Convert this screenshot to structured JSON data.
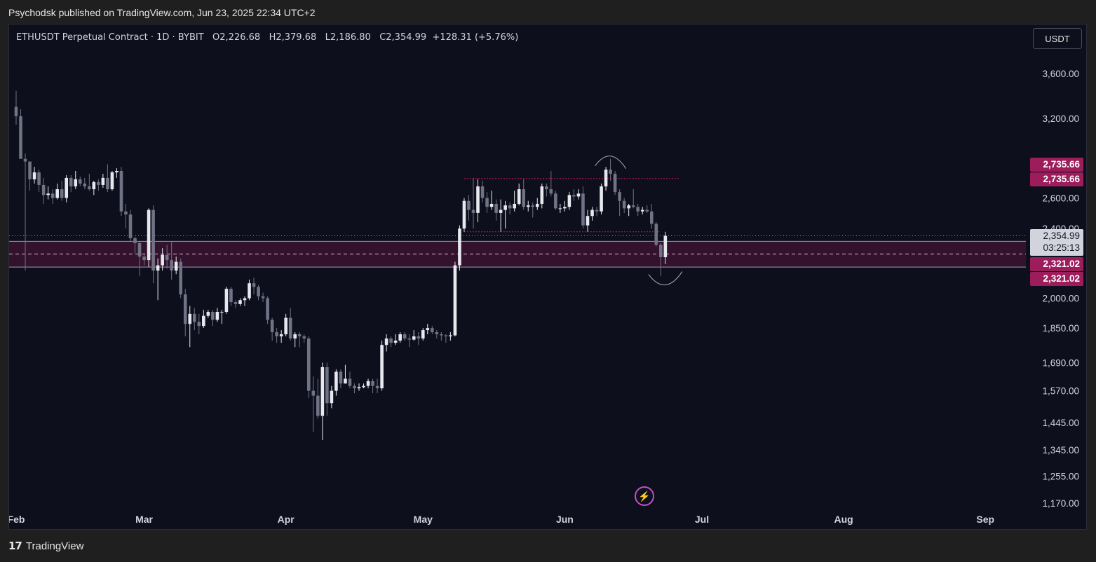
{
  "header": {
    "published": "Psychodsk published on TradingView.com, Jun 23, 2025 22:34 UTC+2"
  },
  "legend": {
    "symbol": "ETHUSDT Perpetual Contract · 1D · BYBIT",
    "open": "O2,226.68",
    "high": "H2,379.68",
    "low": "L2,186.80",
    "close": "C2,354.99",
    "change": "+128.31 (+5.76%)"
  },
  "currency_button": "USDT",
  "footer": {
    "brand": "TradingView",
    "logo": "tradingview-logo-icon"
  },
  "colors": {
    "background": "#0d0f1c",
    "candle": "#d1d4dc",
    "zone": "#8b1a57",
    "resistance": "#c2185b"
  },
  "chart_data": {
    "type": "candlestick",
    "symbol": "ETHUSDT",
    "timeframe": "1D",
    "exchange": "BYBIT",
    "price_scale": "log",
    "y_ticks": [
      3600,
      3200,
      2600,
      2400,
      2000,
      1850,
      1690,
      1570,
      1445,
      1345,
      1255,
      1170
    ],
    "y_tick_labels": [
      "3,600.00",
      "3,200.00",
      "2,600.00",
      "2,400.00",
      "2,000.00",
      "1,850.00",
      "1,690.00",
      "1,570.00",
      "1,445.00",
      "1,345.00",
      "1,255.00",
      "1,170.00"
    ],
    "x_ticks": [
      {
        "label": "Feb",
        "date": "2025-02-01"
      },
      {
        "label": "Mar",
        "date": "2025-03-01"
      },
      {
        "label": "Apr",
        "date": "2025-04-01"
      },
      {
        "label": "May",
        "date": "2025-05-01"
      },
      {
        "label": "Jun",
        "date": "2025-06-01"
      },
      {
        "label": "Jul",
        "date": "2025-07-01"
      },
      {
        "label": "Aug",
        "date": "2025-08-01"
      },
      {
        "label": "Sep",
        "date": "2025-09-01"
      }
    ],
    "last_price": {
      "value": 2354.99,
      "label": "2,354.99",
      "countdown": "03:25:13"
    },
    "resistance": {
      "value": 2735.66,
      "labels": [
        "2,735.66",
        "2,735.66"
      ],
      "from": "2025-05-10",
      "to": "2025-06-26"
    },
    "range_low": {
      "value": 2380,
      "from": "2025-05-10",
      "to": "2025-06-22"
    },
    "support_zone": {
      "top": 2321.02,
      "bottom": 2170,
      "mid": 2245,
      "labels": [
        "2,321.02",
        "2,321.02"
      ]
    },
    "annotations": [
      {
        "type": "arc-top",
        "date": "2025-06-11",
        "price": 2880
      },
      {
        "type": "arc-bottom",
        "date": "2025-06-23",
        "price": 2090
      }
    ],
    "candles": [
      {
        "d": "2025-02-01",
        "o": 3300,
        "h": 3440,
        "l": 3150,
        "c": 3220
      },
      {
        "d": "2025-02-02",
        "o": 3220,
        "h": 3280,
        "l": 2900,
        "c": 2880
      },
      {
        "d": "2025-02-03",
        "o": 2880,
        "h": 2920,
        "l": 2150,
        "c": 2860
      },
      {
        "d": "2025-02-04",
        "o": 2860,
        "h": 2850,
        "l": 2650,
        "c": 2730
      },
      {
        "d": "2025-02-05",
        "o": 2730,
        "h": 2820,
        "l": 2700,
        "c": 2780
      },
      {
        "d": "2025-02-06",
        "o": 2780,
        "h": 2800,
        "l": 2640,
        "c": 2690
      },
      {
        "d": "2025-02-07",
        "o": 2690,
        "h": 2740,
        "l": 2560,
        "c": 2620
      },
      {
        "d": "2025-02-08",
        "o": 2620,
        "h": 2680,
        "l": 2590,
        "c": 2630
      },
      {
        "d": "2025-02-09",
        "o": 2630,
        "h": 2660,
        "l": 2560,
        "c": 2600
      },
      {
        "d": "2025-02-10",
        "o": 2600,
        "h": 2700,
        "l": 2590,
        "c": 2660
      },
      {
        "d": "2025-02-11",
        "o": 2660,
        "h": 2720,
        "l": 2580,
        "c": 2600
      },
      {
        "d": "2025-02-12",
        "o": 2600,
        "h": 2760,
        "l": 2570,
        "c": 2740
      },
      {
        "d": "2025-02-13",
        "o": 2740,
        "h": 2760,
        "l": 2640,
        "c": 2680
      },
      {
        "d": "2025-02-14",
        "o": 2680,
        "h": 2790,
        "l": 2660,
        "c": 2730
      },
      {
        "d": "2025-02-15",
        "o": 2730,
        "h": 2750,
        "l": 2680,
        "c": 2700
      },
      {
        "d": "2025-02-16",
        "o": 2700,
        "h": 2740,
        "l": 2660,
        "c": 2680
      },
      {
        "d": "2025-02-17",
        "o": 2680,
        "h": 2770,
        "l": 2650,
        "c": 2660
      },
      {
        "d": "2025-02-18",
        "o": 2660,
        "h": 2720,
        "l": 2620,
        "c": 2710
      },
      {
        "d": "2025-02-19",
        "o": 2710,
        "h": 2730,
        "l": 2650,
        "c": 2690
      },
      {
        "d": "2025-02-20",
        "o": 2690,
        "h": 2770,
        "l": 2670,
        "c": 2740
      },
      {
        "d": "2025-02-21",
        "o": 2740,
        "h": 2840,
        "l": 2640,
        "c": 2660
      },
      {
        "d": "2025-02-22",
        "o": 2660,
        "h": 2790,
        "l": 2650,
        "c": 2780
      },
      {
        "d": "2025-02-23",
        "o": 2780,
        "h": 2810,
        "l": 2740,
        "c": 2790
      },
      {
        "d": "2025-02-24",
        "o": 2790,
        "h": 2820,
        "l": 2480,
        "c": 2510
      },
      {
        "d": "2025-02-25",
        "o": 2510,
        "h": 2560,
        "l": 2400,
        "c": 2490
      },
      {
        "d": "2025-02-26",
        "o": 2490,
        "h": 2520,
        "l": 2320,
        "c": 2340
      },
      {
        "d": "2025-02-27",
        "o": 2340,
        "h": 2350,
        "l": 2250,
        "c": 2310
      },
      {
        "d": "2025-02-28",
        "o": 2310,
        "h": 2320,
        "l": 2120,
        "c": 2230
      },
      {
        "d": "2025-03-01",
        "o": 2230,
        "h": 2250,
        "l": 2180,
        "c": 2210
      },
      {
        "d": "2025-03-02",
        "o": 2210,
        "h": 2530,
        "l": 2170,
        "c": 2520
      },
      {
        "d": "2025-03-03",
        "o": 2520,
        "h": 2550,
        "l": 2080,
        "c": 2150
      },
      {
        "d": "2025-03-04",
        "o": 2150,
        "h": 2220,
        "l": 1990,
        "c": 2180
      },
      {
        "d": "2025-03-05",
        "o": 2180,
        "h": 2280,
        "l": 2150,
        "c": 2240
      },
      {
        "d": "2025-03-06",
        "o": 2240,
        "h": 2300,
        "l": 2160,
        "c": 2210
      },
      {
        "d": "2025-03-07",
        "o": 2210,
        "h": 2320,
        "l": 2100,
        "c": 2150
      },
      {
        "d": "2025-03-08",
        "o": 2150,
        "h": 2230,
        "l": 2130,
        "c": 2200
      },
      {
        "d": "2025-03-09",
        "o": 2200,
        "h": 2220,
        "l": 2000,
        "c": 2020
      },
      {
        "d": "2025-03-10",
        "o": 2020,
        "h": 2050,
        "l": 1810,
        "c": 1870
      },
      {
        "d": "2025-03-11",
        "o": 1870,
        "h": 1960,
        "l": 1760,
        "c": 1920
      },
      {
        "d": "2025-03-12",
        "o": 1920,
        "h": 1950,
        "l": 1840,
        "c": 1880
      },
      {
        "d": "2025-03-13",
        "o": 1880,
        "h": 1920,
        "l": 1820,
        "c": 1860
      },
      {
        "d": "2025-03-14",
        "o": 1860,
        "h": 1940,
        "l": 1850,
        "c": 1910
      },
      {
        "d": "2025-03-15",
        "o": 1910,
        "h": 1940,
        "l": 1900,
        "c": 1930
      },
      {
        "d": "2025-03-16",
        "o": 1930,
        "h": 1940,
        "l": 1860,
        "c": 1890
      },
      {
        "d": "2025-03-17",
        "o": 1890,
        "h": 1950,
        "l": 1880,
        "c": 1930
      },
      {
        "d": "2025-03-18",
        "o": 1930,
        "h": 1940,
        "l": 1870,
        "c": 1930
      },
      {
        "d": "2025-03-19",
        "o": 1930,
        "h": 2060,
        "l": 1920,
        "c": 2050
      },
      {
        "d": "2025-03-20",
        "o": 2050,
        "h": 2060,
        "l": 1960,
        "c": 1980
      },
      {
        "d": "2025-03-21",
        "o": 1980,
        "h": 1990,
        "l": 1950,
        "c": 1970
      },
      {
        "d": "2025-03-22",
        "o": 1970,
        "h": 2000,
        "l": 1960,
        "c": 1990
      },
      {
        "d": "2025-03-23",
        "o": 1990,
        "h": 2010,
        "l": 1960,
        "c": 2000
      },
      {
        "d": "2025-03-24",
        "o": 2000,
        "h": 2100,
        "l": 1990,
        "c": 2080
      },
      {
        "d": "2025-03-25",
        "o": 2080,
        "h": 2110,
        "l": 2020,
        "c": 2060
      },
      {
        "d": "2025-03-26",
        "o": 2060,
        "h": 2070,
        "l": 1990,
        "c": 2010
      },
      {
        "d": "2025-03-27",
        "o": 2010,
        "h": 2030,
        "l": 1980,
        "c": 2000
      },
      {
        "d": "2025-03-28",
        "o": 2000,
        "h": 2010,
        "l": 1870,
        "c": 1890
      },
      {
        "d": "2025-03-29",
        "o": 1890,
        "h": 1900,
        "l": 1790,
        "c": 1830
      },
      {
        "d": "2025-03-30",
        "o": 1830,
        "h": 1850,
        "l": 1780,
        "c": 1810
      },
      {
        "d": "2025-03-31",
        "o": 1810,
        "h": 1840,
        "l": 1780,
        "c": 1820
      },
      {
        "d": "2025-04-01",
        "o": 1820,
        "h": 1920,
        "l": 1810,
        "c": 1900
      },
      {
        "d": "2025-04-02",
        "o": 1900,
        "h": 1950,
        "l": 1790,
        "c": 1800
      },
      {
        "d": "2025-04-03",
        "o": 1800,
        "h": 1830,
        "l": 1760,
        "c": 1820
      },
      {
        "d": "2025-04-04",
        "o": 1820,
        "h": 1830,
        "l": 1760,
        "c": 1810
      },
      {
        "d": "2025-04-05",
        "o": 1810,
        "h": 1820,
        "l": 1780,
        "c": 1800
      },
      {
        "d": "2025-04-06",
        "o": 1800,
        "h": 1810,
        "l": 1540,
        "c": 1570
      },
      {
        "d": "2025-04-07",
        "o": 1570,
        "h": 1630,
        "l": 1410,
        "c": 1550
      },
      {
        "d": "2025-04-08",
        "o": 1550,
        "h": 1620,
        "l": 1460,
        "c": 1470
      },
      {
        "d": "2025-04-09",
        "o": 1470,
        "h": 1690,
        "l": 1380,
        "c": 1670
      },
      {
        "d": "2025-04-10",
        "o": 1670,
        "h": 1690,
        "l": 1470,
        "c": 1520
      },
      {
        "d": "2025-04-11",
        "o": 1520,
        "h": 1590,
        "l": 1500,
        "c": 1570
      },
      {
        "d": "2025-04-12",
        "o": 1570,
        "h": 1660,
        "l": 1550,
        "c": 1650
      },
      {
        "d": "2025-04-13",
        "o": 1650,
        "h": 1660,
        "l": 1580,
        "c": 1600
      },
      {
        "d": "2025-04-14",
        "o": 1600,
        "h": 1680,
        "l": 1600,
        "c": 1620
      },
      {
        "d": "2025-04-15",
        "o": 1620,
        "h": 1650,
        "l": 1580,
        "c": 1590
      },
      {
        "d": "2025-04-16",
        "o": 1590,
        "h": 1600,
        "l": 1560,
        "c": 1580
      },
      {
        "d": "2025-04-17",
        "o": 1580,
        "h": 1600,
        "l": 1570,
        "c": 1585
      },
      {
        "d": "2025-04-18",
        "o": 1585,
        "h": 1600,
        "l": 1580,
        "c": 1590
      },
      {
        "d": "2025-04-19",
        "o": 1590,
        "h": 1620,
        "l": 1580,
        "c": 1610
      },
      {
        "d": "2025-04-20",
        "o": 1610,
        "h": 1620,
        "l": 1560,
        "c": 1590
      },
      {
        "d": "2025-04-21",
        "o": 1590,
        "h": 1620,
        "l": 1560,
        "c": 1580
      },
      {
        "d": "2025-04-22",
        "o": 1580,
        "h": 1790,
        "l": 1570,
        "c": 1770
      },
      {
        "d": "2025-04-23",
        "o": 1770,
        "h": 1820,
        "l": 1740,
        "c": 1800
      },
      {
        "d": "2025-04-24",
        "o": 1800,
        "h": 1810,
        "l": 1760,
        "c": 1780
      },
      {
        "d": "2025-04-25",
        "o": 1780,
        "h": 1820,
        "l": 1770,
        "c": 1790
      },
      {
        "d": "2025-04-26",
        "o": 1790,
        "h": 1830,
        "l": 1780,
        "c": 1820
      },
      {
        "d": "2025-04-27",
        "o": 1820,
        "h": 1830,
        "l": 1790,
        "c": 1800
      },
      {
        "d": "2025-04-28",
        "o": 1800,
        "h": 1820,
        "l": 1760,
        "c": 1795
      },
      {
        "d": "2025-04-29",
        "o": 1795,
        "h": 1840,
        "l": 1790,
        "c": 1810
      },
      {
        "d": "2025-04-30",
        "o": 1810,
        "h": 1830,
        "l": 1770,
        "c": 1800
      },
      {
        "d": "2025-05-01",
        "o": 1800,
        "h": 1850,
        "l": 1790,
        "c": 1840
      },
      {
        "d": "2025-05-02",
        "o": 1840,
        "h": 1870,
        "l": 1820,
        "c": 1850
      },
      {
        "d": "2025-05-03",
        "o": 1850,
        "h": 1860,
        "l": 1820,
        "c": 1830
      },
      {
        "d": "2025-05-04",
        "o": 1830,
        "h": 1840,
        "l": 1800,
        "c": 1820
      },
      {
        "d": "2025-05-05",
        "o": 1820,
        "h": 1830,
        "l": 1790,
        "c": 1815
      },
      {
        "d": "2025-05-06",
        "o": 1815,
        "h": 1820,
        "l": 1780,
        "c": 1810
      },
      {
        "d": "2025-05-07",
        "o": 1810,
        "h": 1830,
        "l": 1790,
        "c": 1815
      },
      {
        "d": "2025-05-08",
        "o": 1815,
        "h": 2200,
        "l": 1810,
        "c": 2180
      },
      {
        "d": "2025-05-09",
        "o": 2180,
        "h": 2420,
        "l": 2150,
        "c": 2400
      },
      {
        "d": "2025-05-10",
        "o": 2400,
        "h": 2600,
        "l": 2380,
        "c": 2580
      },
      {
        "d": "2025-05-11",
        "o": 2580,
        "h": 2620,
        "l": 2450,
        "c": 2520
      },
      {
        "d": "2025-05-12",
        "o": 2520,
        "h": 2740,
        "l": 2400,
        "c": 2500
      },
      {
        "d": "2025-05-13",
        "o": 2500,
        "h": 2730,
        "l": 2440,
        "c": 2680
      },
      {
        "d": "2025-05-14",
        "o": 2680,
        "h": 2720,
        "l": 2570,
        "c": 2600
      },
      {
        "d": "2025-05-15",
        "o": 2600,
        "h": 2640,
        "l": 2500,
        "c": 2540
      },
      {
        "d": "2025-05-16",
        "o": 2540,
        "h": 2650,
        "l": 2520,
        "c": 2560
      },
      {
        "d": "2025-05-17",
        "o": 2560,
        "h": 2590,
        "l": 2450,
        "c": 2500
      },
      {
        "d": "2025-05-18",
        "o": 2500,
        "h": 2590,
        "l": 2380,
        "c": 2520
      },
      {
        "d": "2025-05-19",
        "o": 2520,
        "h": 2580,
        "l": 2400,
        "c": 2550
      },
      {
        "d": "2025-05-20",
        "o": 2550,
        "h": 2570,
        "l": 2490,
        "c": 2530
      },
      {
        "d": "2025-05-21",
        "o": 2530,
        "h": 2650,
        "l": 2510,
        "c": 2560
      },
      {
        "d": "2025-05-22",
        "o": 2560,
        "h": 2700,
        "l": 2550,
        "c": 2660
      },
      {
        "d": "2025-05-23",
        "o": 2660,
        "h": 2730,
        "l": 2520,
        "c": 2540
      },
      {
        "d": "2025-05-24",
        "o": 2540,
        "h": 2580,
        "l": 2510,
        "c": 2550
      },
      {
        "d": "2025-05-25",
        "o": 2550,
        "h": 2570,
        "l": 2470,
        "c": 2540
      },
      {
        "d": "2025-05-26",
        "o": 2540,
        "h": 2600,
        "l": 2520,
        "c": 2560
      },
      {
        "d": "2025-05-27",
        "o": 2560,
        "h": 2700,
        "l": 2530,
        "c": 2680
      },
      {
        "d": "2025-05-28",
        "o": 2680,
        "h": 2700,
        "l": 2610,
        "c": 2660
      },
      {
        "d": "2025-05-29",
        "o": 2660,
        "h": 2790,
        "l": 2610,
        "c": 2630
      },
      {
        "d": "2025-05-30",
        "o": 2630,
        "h": 2650,
        "l": 2520,
        "c": 2530
      },
      {
        "d": "2025-05-31",
        "o": 2530,
        "h": 2560,
        "l": 2500,
        "c": 2530
      },
      {
        "d": "2025-06-01",
        "o": 2530,
        "h": 2580,
        "l": 2510,
        "c": 2540
      },
      {
        "d": "2025-06-02",
        "o": 2540,
        "h": 2640,
        "l": 2520,
        "c": 2620
      },
      {
        "d": "2025-06-03",
        "o": 2620,
        "h": 2660,
        "l": 2580,
        "c": 2610
      },
      {
        "d": "2025-06-04",
        "o": 2610,
        "h": 2660,
        "l": 2590,
        "c": 2630
      },
      {
        "d": "2025-06-05",
        "o": 2630,
        "h": 2680,
        "l": 2400,
        "c": 2420
      },
      {
        "d": "2025-06-06",
        "o": 2420,
        "h": 2520,
        "l": 2380,
        "c": 2480
      },
      {
        "d": "2025-06-07",
        "o": 2480,
        "h": 2540,
        "l": 2450,
        "c": 2520
      },
      {
        "d": "2025-06-08",
        "o": 2520,
        "h": 2540,
        "l": 2480,
        "c": 2510
      },
      {
        "d": "2025-06-09",
        "o": 2510,
        "h": 2700,
        "l": 2490,
        "c": 2680
      },
      {
        "d": "2025-06-10",
        "o": 2680,
        "h": 2820,
        "l": 2650,
        "c": 2800
      },
      {
        "d": "2025-06-11",
        "o": 2800,
        "h": 2880,
        "l": 2720,
        "c": 2770
      },
      {
        "d": "2025-06-12",
        "o": 2770,
        "h": 2790,
        "l": 2620,
        "c": 2640
      },
      {
        "d": "2025-06-13",
        "o": 2640,
        "h": 2660,
        "l": 2480,
        "c": 2580
      },
      {
        "d": "2025-06-14",
        "o": 2580,
        "h": 2600,
        "l": 2500,
        "c": 2530
      },
      {
        "d": "2025-06-15",
        "o": 2530,
        "h": 2560,
        "l": 2480,
        "c": 2550
      },
      {
        "d": "2025-06-16",
        "o": 2550,
        "h": 2660,
        "l": 2530,
        "c": 2540
      },
      {
        "d": "2025-06-17",
        "o": 2540,
        "h": 2560,
        "l": 2480,
        "c": 2510
      },
      {
        "d": "2025-06-18",
        "o": 2510,
        "h": 2540,
        "l": 2490,
        "c": 2520
      },
      {
        "d": "2025-06-19",
        "o": 2520,
        "h": 2550,
        "l": 2500,
        "c": 2510
      },
      {
        "d": "2025-06-20",
        "o": 2510,
        "h": 2560,
        "l": 2400,
        "c": 2430
      },
      {
        "d": "2025-06-21",
        "o": 2430,
        "h": 2440,
        "l": 2290,
        "c": 2300
      },
      {
        "d": "2025-06-22",
        "o": 2300,
        "h": 2310,
        "l": 2120,
        "c": 2226.68
      },
      {
        "d": "2025-06-23",
        "o": 2226.68,
        "h": 2379.68,
        "l": 2186.8,
        "c": 2354.99
      }
    ]
  }
}
